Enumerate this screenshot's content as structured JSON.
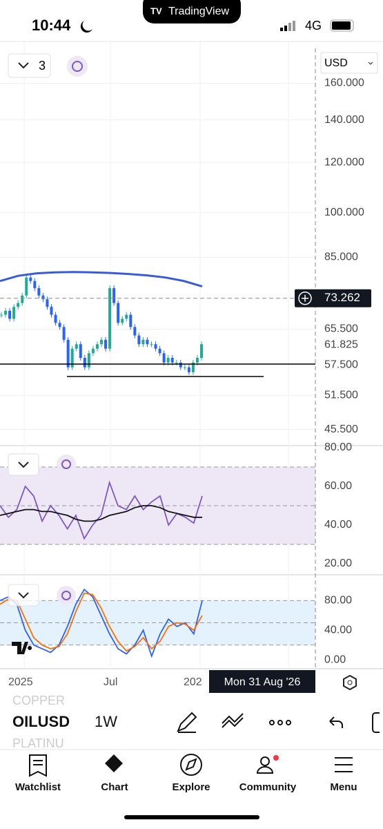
{
  "status_bar": {
    "time": "10:44",
    "network": "4G",
    "app": "TradingView"
  },
  "chart_controls": {
    "layout_count": "3",
    "currency": "USD"
  },
  "chart_data": [
    {
      "type": "candlestick",
      "log_scale": true,
      "ylim": [
        42.9,
        181.6
      ],
      "yticks": [
        {
          "value": 160,
          "label": "160.000"
        },
        {
          "value": 140,
          "label": "140.000"
        },
        {
          "value": 120,
          "label": "120.000"
        },
        {
          "value": 100,
          "label": "100.000"
        },
        {
          "value": 85,
          "label": "85.000"
        },
        {
          "value": 65.5,
          "label": "65.500"
        },
        {
          "value": 57.5,
          "label": "57.500"
        },
        {
          "value": 51.5,
          "label": "51.500"
        },
        {
          "value": 45.5,
          "label": "45.500"
        }
      ],
      "values": [
        69,
        70,
        68,
        71,
        72,
        74,
        79,
        78,
        76,
        74,
        73,
        71,
        69,
        67,
        66,
        63,
        57,
        61,
        62,
        59,
        57,
        60,
        61,
        62,
        63,
        61,
        76,
        72,
        67,
        68,
        69,
        66,
        64,
        62,
        63,
        62,
        62,
        61,
        60,
        58,
        59,
        58,
        58,
        57,
        57,
        56,
        58,
        59,
        62
      ],
      "up_color": "#22ab94",
      "down_color": "#2962ff",
      "ma_values": [
        78,
        79.5,
        80.2,
        80.5,
        80.6,
        80.5,
        80.3,
        80,
        79.6,
        79,
        78,
        76.5
      ],
      "ma_color": "#3a5bd9",
      "last_price": 61.825,
      "crosshair_price": {
        "value": 73.262,
        "label": "73.262"
      },
      "grid": true
    },
    {
      "type": "line",
      "ylim": [
        15,
        80
      ],
      "yticks": [
        {
          "value": 80,
          "label": "80.00"
        },
        {
          "value": 60,
          "label": "60.00"
        },
        {
          "value": 40,
          "label": "40.00"
        },
        {
          "value": 20,
          "label": "20.00"
        }
      ],
      "band": [
        30,
        70
      ],
      "band_color": "#ede7f6",
      "levels": [
        70,
        50,
        30
      ],
      "series": [
        {
          "color": "#7e57c2",
          "values": [
            50,
            44,
            48,
            60,
            55,
            42,
            50,
            45,
            38,
            45,
            33,
            40,
            45,
            62,
            50,
            48,
            55,
            48,
            52,
            55,
            40,
            46,
            44,
            41,
            55
          ]
        },
        {
          "color": "#111111",
          "values": [
            45,
            46,
            47,
            48,
            48,
            47,
            47,
            46,
            45,
            43,
            42,
            42,
            43,
            45,
            46,
            47,
            49,
            50,
            50,
            49,
            47,
            46,
            45,
            44,
            44
          ]
        }
      ]
    },
    {
      "type": "line",
      "ylim": [
        -12,
        112
      ],
      "yticks": [
        {
          "value": 80,
          "label": "80.00"
        },
        {
          "value": 40,
          "label": "40.00"
        },
        {
          "value": 0,
          "label": "0.00"
        }
      ],
      "band": [
        20,
        80
      ],
      "band_color": "#e3f2fd",
      "levels": [
        80,
        50,
        20
      ],
      "series": [
        {
          "color": "#2962ff",
          "values": [
            80,
            85,
            75,
            40,
            20,
            15,
            10,
            20,
            45,
            75,
            95,
            85,
            60,
            35,
            15,
            8,
            20,
            40,
            5,
            35,
            55,
            45,
            50,
            35,
            80
          ]
        },
        {
          "color": "#ff6d00",
          "values": [
            75,
            82,
            80,
            55,
            30,
            20,
            15,
            18,
            35,
            65,
            90,
            88,
            70,
            45,
            25,
            12,
            18,
            30,
            15,
            25,
            45,
            50,
            48,
            40,
            60
          ]
        }
      ]
    }
  ],
  "time_axis": {
    "labels": [
      "2025",
      "Jul",
      "202"
    ],
    "crosshair_label": "Mon 31 Aug '26"
  },
  "toolbar": {
    "symbol": "OILUSD",
    "interval": "1W",
    "list_above": "COPPER",
    "list_below": "PLATINU"
  },
  "nav": [
    "Watchlist",
    "Chart",
    "Explore",
    "Community",
    "Menu"
  ]
}
